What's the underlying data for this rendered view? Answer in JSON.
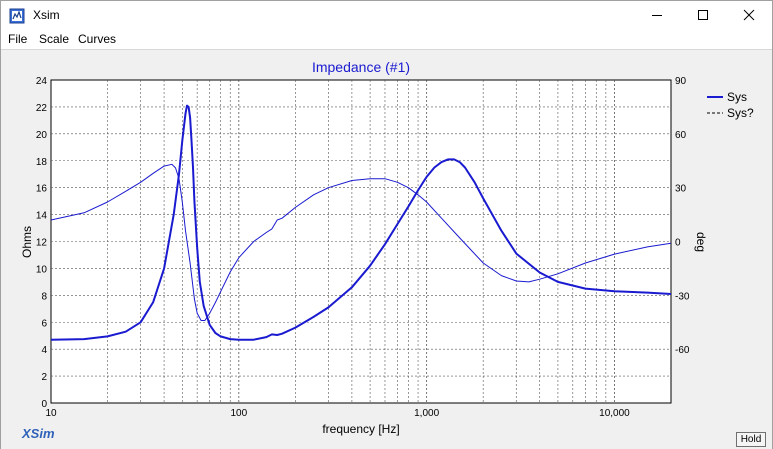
{
  "window": {
    "title": "Xsim",
    "controls": {
      "minimize": "minimize",
      "maximize": "maximize",
      "close": "close"
    }
  },
  "menu": {
    "file": "File",
    "scale": "Scale",
    "curves": "Curves"
  },
  "brand": "XSim",
  "hold_label": "Hold",
  "colors": {
    "curve": "#1a1ad0",
    "title": "#1a1ad0"
  },
  "chart_data": {
    "type": "line",
    "title": "Impedance (#1)",
    "xlabel": "frequency [Hz]",
    "ylabel": "Ohms",
    "ylabel_right": "deg",
    "x_scale": "log",
    "xlim": [
      10,
      20000
    ],
    "ylim": [
      0,
      24
    ],
    "ylim_right": [
      -90,
      90
    ],
    "x_ticks": [
      "10",
      "100",
      "1,000",
      "10,000"
    ],
    "y_ticks": [
      "0",
      "2",
      "4",
      "6",
      "8",
      "10",
      "12",
      "14",
      "16",
      "18",
      "20",
      "22",
      "24"
    ],
    "y_ticks_right": [
      "-60",
      "-30",
      "0",
      "30",
      "60",
      "90"
    ],
    "grid": true,
    "legend_position": "top-right",
    "series": [
      {
        "name": "Sys",
        "axis": "left",
        "style": "solid-thick",
        "x": [
          10,
          15,
          20,
          25,
          30,
          35,
          40,
          45,
          48,
          50,
          52,
          53,
          54,
          55,
          56,
          57,
          58,
          60,
          62,
          65,
          70,
          75,
          80,
          90,
          100,
          120,
          140,
          150,
          160,
          170,
          200,
          250,
          300,
          400,
          500,
          600,
          700,
          800,
          900,
          1000,
          1100,
          1200,
          1300,
          1400,
          1500,
          1600,
          1800,
          2000,
          2500,
          3000,
          4000,
          5000,
          7000,
          10000,
          15000,
          20000
        ],
        "y": [
          4.7,
          4.75,
          4.95,
          5.3,
          6.0,
          7.5,
          10.0,
          14.0,
          17.0,
          19.5,
          21.5,
          22.1,
          22.0,
          21.2,
          19.5,
          17.5,
          15.0,
          11.5,
          9.0,
          7.2,
          5.8,
          5.2,
          4.95,
          4.75,
          4.7,
          4.7,
          4.9,
          5.1,
          5.05,
          5.15,
          5.6,
          6.4,
          7.1,
          8.6,
          10.2,
          11.8,
          13.3,
          14.6,
          15.8,
          16.8,
          17.5,
          17.9,
          18.1,
          18.1,
          17.9,
          17.5,
          16.4,
          15.2,
          12.8,
          11.1,
          9.7,
          9.0,
          8.5,
          8.3,
          8.2,
          8.1
        ]
      },
      {
        "name": "Sys?",
        "axis": "right",
        "style": "dashed-thin",
        "x": [
          10,
          15,
          20,
          25,
          30,
          35,
          40,
          44,
          46,
          48,
          50,
          52,
          55,
          58,
          60,
          63,
          66,
          70,
          75,
          80,
          90,
          100,
          120,
          140,
          150,
          160,
          170,
          200,
          250,
          300,
          400,
          500,
          600,
          700,
          800,
          900,
          1000,
          1200,
          1500,
          2000,
          2500,
          3000,
          3500,
          4000,
          5000,
          7000,
          10000,
          15000,
          20000
        ],
        "y": [
          12,
          16,
          22,
          28,
          33,
          38,
          42,
          43,
          41,
          35,
          22,
          6,
          -12,
          -32,
          -40,
          -44,
          -44,
          -40,
          -34,
          -28,
          -17,
          -9,
          0,
          5,
          7,
          12,
          13,
          19,
          26,
          30,
          34,
          35,
          35,
          33,
          30,
          26,
          22,
          13,
          2,
          -12,
          -19,
          -22,
          -22.5,
          -21,
          -18,
          -12,
          -7,
          -3,
          -1
        ]
      }
    ]
  }
}
